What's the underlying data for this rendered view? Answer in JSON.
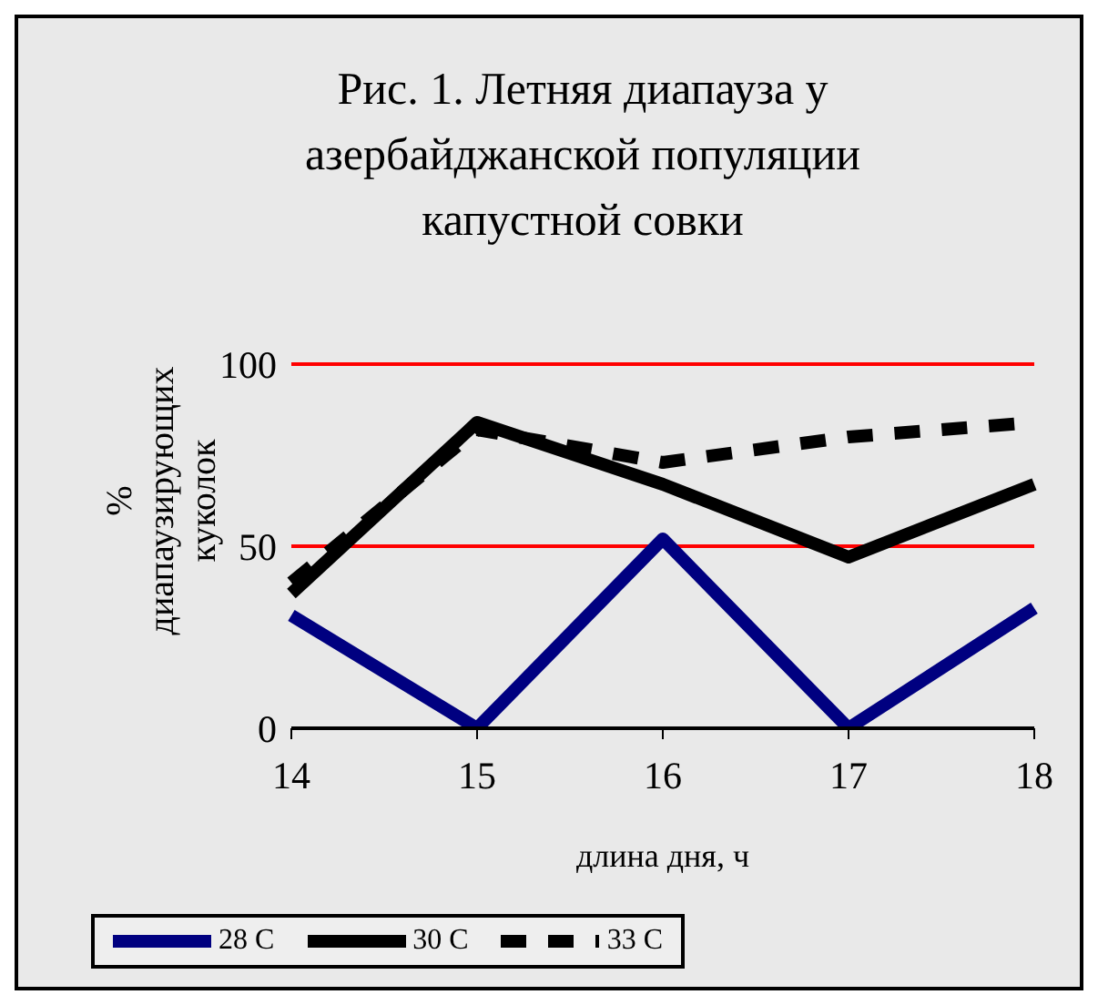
{
  "chart_data": {
    "type": "line",
    "title": "Рис. 1. Летняя диапауза у азербайджанской популяции капустной совки",
    "xlabel": "длина дня, ч",
    "ylabel": "% диапаузирующих куколок",
    "categories": [
      "14",
      "15",
      "16",
      "17",
      "18"
    ],
    "series": [
      {
        "name": "28 C",
        "color": "#000080",
        "values": [
          31,
          0,
          52,
          0,
          33
        ],
        "line_style": "solid"
      },
      {
        "name": "30 C",
        "color": "#000000",
        "values": [
          37,
          84,
          67,
          47,
          67
        ],
        "line_style": "solid"
      },
      {
        "name": "33 C",
        "color": "#000000",
        "values": [
          40,
          82,
          73,
          80,
          84
        ],
        "line_style": "dashed"
      }
    ],
    "ylim": [
      0,
      100
    ],
    "yticks": [
      0,
      50,
      100
    ],
    "ref_lines": [
      {
        "axis": "y",
        "value": 50,
        "label": null,
        "color": "#ff0000"
      },
      {
        "axis": "y",
        "value": 100,
        "label": null,
        "color": "#ff0000"
      }
    ],
    "legend": "bottom",
    "marker": "none"
  }
}
